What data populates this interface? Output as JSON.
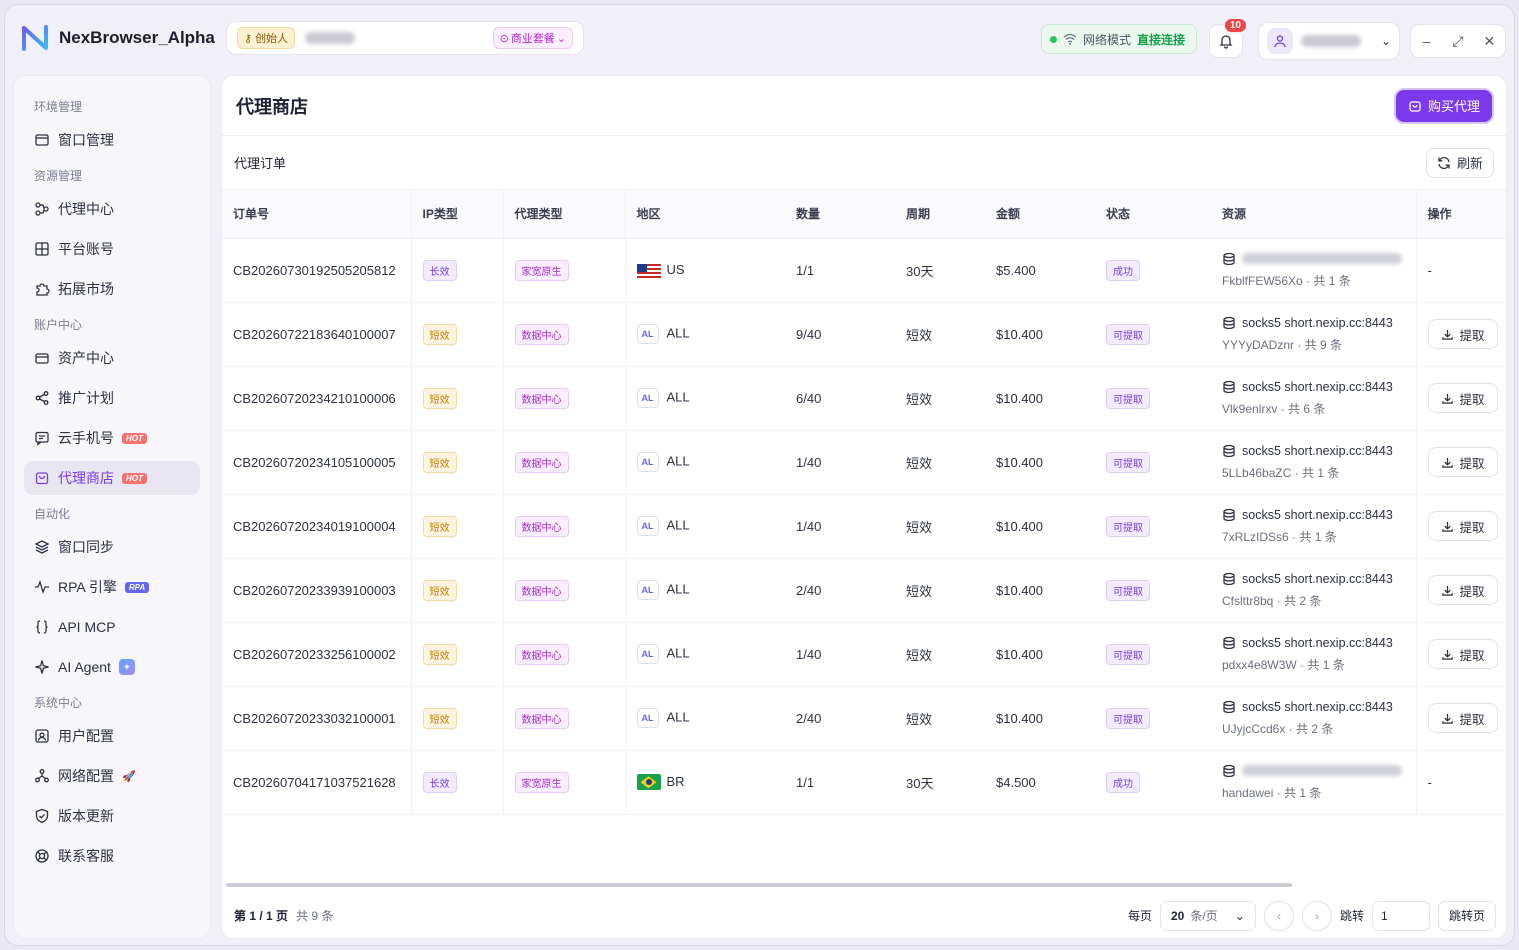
{
  "app": {
    "title": "NexBrowser_Alpha"
  },
  "topbar": {
    "creator_label": "创始人",
    "plan_label": "商业套餐",
    "net_mode_label": "网络模式",
    "net_mode_value": "直接连接",
    "notification_count": "10",
    "window_controls": [
      "–",
      "⤢",
      "✕"
    ]
  },
  "sidebar": {
    "groups": [
      {
        "label": "环境管理",
        "items": [
          {
            "label": "窗口管理",
            "icon": "window-icon"
          }
        ]
      },
      {
        "label": "资源管理",
        "items": [
          {
            "label": "代理中心",
            "icon": "proxy-icon"
          },
          {
            "label": "平台账号",
            "icon": "grid-icon"
          },
          {
            "label": "拓展市场",
            "icon": "puzzle-icon"
          }
        ]
      },
      {
        "label": "账户中心",
        "items": [
          {
            "label": "资产中心",
            "icon": "wallet-icon"
          },
          {
            "label": "推广计划",
            "icon": "share-icon"
          },
          {
            "label": "云手机号",
            "icon": "message-icon",
            "badge": "HOT"
          },
          {
            "label": "代理商店",
            "icon": "store-icon",
            "badge": "HOT",
            "active": true
          }
        ]
      },
      {
        "label": "自动化",
        "items": [
          {
            "label": "窗口同步",
            "icon": "layers-icon"
          },
          {
            "label": "RPA 引擎",
            "icon": "pulse-icon",
            "badge": "RPA"
          },
          {
            "label": "API MCP",
            "icon": "braces-icon"
          },
          {
            "label": "AI Agent",
            "icon": "sparkle-icon"
          }
        ]
      },
      {
        "label": "系统中心",
        "items": [
          {
            "label": "用户配置",
            "icon": "user-config-icon"
          },
          {
            "label": "网络配置",
            "icon": "network-icon"
          },
          {
            "label": "版本更新",
            "icon": "shield-icon"
          },
          {
            "label": "联系客服",
            "icon": "support-icon"
          }
        ]
      }
    ]
  },
  "main": {
    "title": "代理商店",
    "buy_button": "购买代理",
    "section_title": "代理订单",
    "refresh_button": "刷新",
    "columns": [
      "订单号",
      "IP类型",
      "代理类型",
      "地区",
      "数量",
      "周期",
      "金额",
      "状态",
      "资源",
      "操作"
    ],
    "extract_label": "提取",
    "orders": [
      {
        "id": "CB20260730192505205812",
        "ip_type": "长效",
        "ip_kind": "long",
        "proxy_type": "家宽原生",
        "flag": "us",
        "region": "US",
        "qty": "1/1",
        "period": "30天",
        "amount": "$5.400",
        "status": "成功",
        "resource_host": "",
        "resource_sub": "FkblfFEW56Xo · 共 1 条",
        "action": "-"
      },
      {
        "id": "CB20260722183640100007",
        "ip_type": "短效",
        "ip_kind": "short",
        "proxy_type": "数据中心",
        "flag": "al",
        "region": "ALL",
        "qty": "9/40",
        "period": "短效",
        "amount": "$10.400",
        "status": "可提取",
        "resource_host": "socks5 short.nexip.cc:8443",
        "resource_sub": "YYYyDADznr · 共 9 条",
        "action": "extract"
      },
      {
        "id": "CB20260720234210100006",
        "ip_type": "短效",
        "ip_kind": "short",
        "proxy_type": "数据中心",
        "flag": "al",
        "region": "ALL",
        "qty": "6/40",
        "period": "短效",
        "amount": "$10.400",
        "status": "可提取",
        "resource_host": "socks5 short.nexip.cc:8443",
        "resource_sub": "Vlk9enlrxv · 共 6 条",
        "action": "extract"
      },
      {
        "id": "CB20260720234105100005",
        "ip_type": "短效",
        "ip_kind": "short",
        "proxy_type": "数据中心",
        "flag": "al",
        "region": "ALL",
        "qty": "1/40",
        "period": "短效",
        "amount": "$10.400",
        "status": "可提取",
        "resource_host": "socks5 short.nexip.cc:8443",
        "resource_sub": "5LLb46baZC · 共 1 条",
        "action": "extract"
      },
      {
        "id": "CB20260720234019100004",
        "ip_type": "短效",
        "ip_kind": "short",
        "proxy_type": "数据中心",
        "flag": "al",
        "region": "ALL",
        "qty": "1/40",
        "period": "短效",
        "amount": "$10.400",
        "status": "可提取",
        "resource_host": "socks5 short.nexip.cc:8443",
        "resource_sub": "7xRLzIDSs6 · 共 1 条",
        "action": "extract"
      },
      {
        "id": "CB20260720233939100003",
        "ip_type": "短效",
        "ip_kind": "short",
        "proxy_type": "数据中心",
        "flag": "al",
        "region": "ALL",
        "qty": "2/40",
        "period": "短效",
        "amount": "$10.400",
        "status": "可提取",
        "resource_host": "socks5 short.nexip.cc:8443",
        "resource_sub": "Cfslttr8bq · 共 2 条",
        "action": "extract"
      },
      {
        "id": "CB20260720233256100002",
        "ip_type": "短效",
        "ip_kind": "short",
        "proxy_type": "数据中心",
        "flag": "al",
        "region": "ALL",
        "qty": "1/40",
        "period": "短效",
        "amount": "$10.400",
        "status": "可提取",
        "resource_host": "socks5 short.nexip.cc:8443",
        "resource_sub": "pdxx4e8W3W · 共 1 条",
        "action": "extract"
      },
      {
        "id": "CB20260720233032100001",
        "ip_type": "短效",
        "ip_kind": "short",
        "proxy_type": "数据中心",
        "flag": "al",
        "region": "ALL",
        "qty": "2/40",
        "period": "短效",
        "amount": "$10.400",
        "status": "可提取",
        "resource_host": "socks5 short.nexip.cc:8443",
        "resource_sub": "UJyjcCcd6x · 共 2 条",
        "action": "extract"
      },
      {
        "id": "CB20260704171037521628",
        "ip_type": "长效",
        "ip_kind": "long",
        "proxy_type": "家宽原生",
        "flag": "br",
        "region": "BR",
        "qty": "1/1",
        "period": "30天",
        "amount": "$4.500",
        "status": "成功",
        "resource_host": "",
        "resource_sub": "handawei · 共 1 条",
        "action": "-"
      }
    ]
  },
  "pagination": {
    "page_info": "第 1 / 1 页",
    "total": "共 9 条",
    "per_page_label": "每页",
    "per_page_value": "20",
    "per_page_unit": "条/页",
    "jump_label": "跳转",
    "jump_value": "1",
    "jump_button": "跳转页"
  }
}
